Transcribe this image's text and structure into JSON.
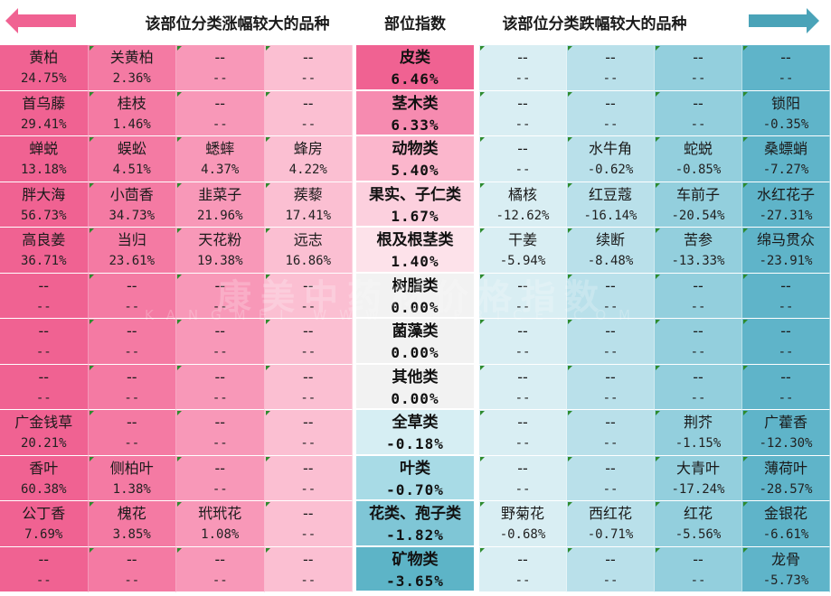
{
  "header": {
    "left_title": "该部位分类涨幅较大的品种",
    "middle_title": "部位指数",
    "right_title": "该部位分类跌幅较大的品种",
    "left_arrow_color": "#f06292",
    "right_arrow_color": "#4aa3b8"
  },
  "colors": {
    "rise_row_a": [
      "#f06292",
      "#f47aa3",
      "#f898b8",
      "#fbbfd2"
    ],
    "fall_row": [
      "#d9eef3",
      "#b9e0ea",
      "#93cfdd",
      "#5fb4c9"
    ]
  },
  "rows": [
    {
      "category": "皮类",
      "index": "6.46%",
      "rise": [
        {
          "name": "黄柏",
          "val": "24.75%"
        },
        {
          "name": "关黄柏",
          "val": "2.36%"
        },
        {
          "name": "--",
          "val": "--"
        },
        {
          "name": "--",
          "val": "--"
        }
      ],
      "fall": [
        {
          "name": "--",
          "val": "--"
        },
        {
          "name": "--",
          "val": "--"
        },
        {
          "name": "--",
          "val": "--"
        },
        {
          "name": "--",
          "val": "--"
        }
      ]
    },
    {
      "category": "茎木类",
      "index": "6.33%",
      "rise": [
        {
          "name": "首乌藤",
          "val": "29.41%"
        },
        {
          "name": "桂枝",
          "val": "1.46%"
        },
        {
          "name": "--",
          "val": "--"
        },
        {
          "name": "--",
          "val": "--"
        }
      ],
      "fall": [
        {
          "name": "--",
          "val": "--"
        },
        {
          "name": "--",
          "val": "--"
        },
        {
          "name": "--",
          "val": "--"
        },
        {
          "name": "锁阳",
          "val": "-0.35%"
        }
      ]
    },
    {
      "category": "动物类",
      "index": "5.40%",
      "rise": [
        {
          "name": "蝉蜕",
          "val": "13.18%"
        },
        {
          "name": "蜈蚣",
          "val": "4.51%"
        },
        {
          "name": "蟋蟀",
          "val": "4.37%"
        },
        {
          "name": "蜂房",
          "val": "4.22%"
        }
      ],
      "fall": [
        {
          "name": "--",
          "val": "--"
        },
        {
          "name": "水牛角",
          "val": "-0.62%"
        },
        {
          "name": "蛇蜕",
          "val": "-0.85%"
        },
        {
          "name": "桑螵蛸",
          "val": "-7.27%"
        }
      ]
    },
    {
      "category": "果实、子仁类",
      "index": "1.67%",
      "rise": [
        {
          "name": "胖大海",
          "val": "56.73%"
        },
        {
          "name": "小茴香",
          "val": "34.73%"
        },
        {
          "name": "韭菜子",
          "val": "21.96%"
        },
        {
          "name": "蒺藜",
          "val": "17.41%"
        }
      ],
      "fall": [
        {
          "name": "橘核",
          "val": "-12.62%"
        },
        {
          "name": "红豆蔻",
          "val": "-16.14%"
        },
        {
          "name": "车前子",
          "val": "-20.54%"
        },
        {
          "name": "水红花子",
          "val": "-27.31%"
        }
      ]
    },
    {
      "category": "根及根茎类",
      "index": "1.40%",
      "rise": [
        {
          "name": "高良姜",
          "val": "36.71%"
        },
        {
          "name": "当归",
          "val": "23.61%"
        },
        {
          "name": "天花粉",
          "val": "19.38%"
        },
        {
          "name": "远志",
          "val": "16.86%"
        }
      ],
      "fall": [
        {
          "name": "干姜",
          "val": "-5.94%"
        },
        {
          "name": "续断",
          "val": "-8.48%"
        },
        {
          "name": "苦参",
          "val": "-13.33%"
        },
        {
          "name": "绵马贯众",
          "val": "-23.91%"
        }
      ]
    },
    {
      "category": "树脂类",
      "index": "0.00%",
      "rise": [
        {
          "name": "--",
          "val": "--"
        },
        {
          "name": "--",
          "val": "--"
        },
        {
          "name": "--",
          "val": "--"
        },
        {
          "name": "--",
          "val": "--"
        }
      ],
      "fall": [
        {
          "name": "--",
          "val": "--"
        },
        {
          "name": "--",
          "val": "--"
        },
        {
          "name": "--",
          "val": "--"
        },
        {
          "name": "--",
          "val": "--"
        }
      ]
    },
    {
      "category": "菌藻类",
      "index": "0.00%",
      "rise": [
        {
          "name": "--",
          "val": "--"
        },
        {
          "name": "--",
          "val": "--"
        },
        {
          "name": "--",
          "val": "--"
        },
        {
          "name": "--",
          "val": "--"
        }
      ],
      "fall": [
        {
          "name": "--",
          "val": "--"
        },
        {
          "name": "--",
          "val": "--"
        },
        {
          "name": "--",
          "val": "--"
        },
        {
          "name": "--",
          "val": "--"
        }
      ]
    },
    {
      "category": "其他类",
      "index": "0.00%",
      "rise": [
        {
          "name": "--",
          "val": "--"
        },
        {
          "name": "--",
          "val": "--"
        },
        {
          "name": "--",
          "val": "--"
        },
        {
          "name": "--",
          "val": "--"
        }
      ],
      "fall": [
        {
          "name": "--",
          "val": "--"
        },
        {
          "name": "--",
          "val": "--"
        },
        {
          "name": "--",
          "val": "--"
        },
        {
          "name": "--",
          "val": "--"
        }
      ]
    },
    {
      "category": "全草类",
      "index": "-0.18%",
      "rise": [
        {
          "name": "广金钱草",
          "val": "20.21%"
        },
        {
          "name": "--",
          "val": "--"
        },
        {
          "name": "--",
          "val": "--"
        },
        {
          "name": "--",
          "val": "--"
        }
      ],
      "fall": [
        {
          "name": "--",
          "val": "--"
        },
        {
          "name": "--",
          "val": "--"
        },
        {
          "name": "荆芥",
          "val": "-1.15%"
        },
        {
          "name": "广藿香",
          "val": "-12.30%"
        }
      ]
    },
    {
      "category": "叶类",
      "index": "-0.70%",
      "rise": [
        {
          "name": "香叶",
          "val": "60.38%"
        },
        {
          "name": "侧柏叶",
          "val": "1.38%"
        },
        {
          "name": "--",
          "val": "--"
        },
        {
          "name": "--",
          "val": "--"
        }
      ],
      "fall": [
        {
          "name": "--",
          "val": "--"
        },
        {
          "name": "--",
          "val": "--"
        },
        {
          "name": "大青叶",
          "val": "-17.24%"
        },
        {
          "name": "薄荷叶",
          "val": "-28.57%"
        }
      ]
    },
    {
      "category": "花类、孢子类",
      "index": "-1.82%",
      "rise": [
        {
          "name": "公丁香",
          "val": "7.69%"
        },
        {
          "name": "槐花",
          "val": "3.85%"
        },
        {
          "name": "玳玳花",
          "val": "1.08%"
        },
        {
          "name": "--",
          "val": "--"
        }
      ],
      "fall": [
        {
          "name": "野菊花",
          "val": "-0.68%"
        },
        {
          "name": "西红花",
          "val": "-0.71%"
        },
        {
          "name": "红花",
          "val": "-5.56%"
        },
        {
          "name": "金银花",
          "val": "-6.61%"
        }
      ]
    },
    {
      "category": "矿物类",
      "index": "-3.65%",
      "rise": [
        {
          "name": "--",
          "val": "--"
        },
        {
          "name": "--",
          "val": "--"
        },
        {
          "name": "--",
          "val": "--"
        },
        {
          "name": "--",
          "val": "--"
        }
      ],
      "fall": [
        {
          "name": "--",
          "val": "--"
        },
        {
          "name": "--",
          "val": "--"
        },
        {
          "name": "--",
          "val": "--"
        },
        {
          "name": "龙骨",
          "val": "-5.73%"
        }
      ]
    }
  ],
  "middle_colors": [
    "#f06292",
    "#f68bb0",
    "#fbb6cc",
    "#fcd0de",
    "#fde2ea",
    "#f2f2f2",
    "#f2f2f2",
    "#f2f2f2",
    "#d6eef3",
    "#a8dbe6",
    "#7fc6d6",
    "#5db4c7"
  ],
  "watermark": {
    "line1": "康美中药材价格指数",
    "line2": "KANGMEI WWW.CMPRICE.COM"
  }
}
